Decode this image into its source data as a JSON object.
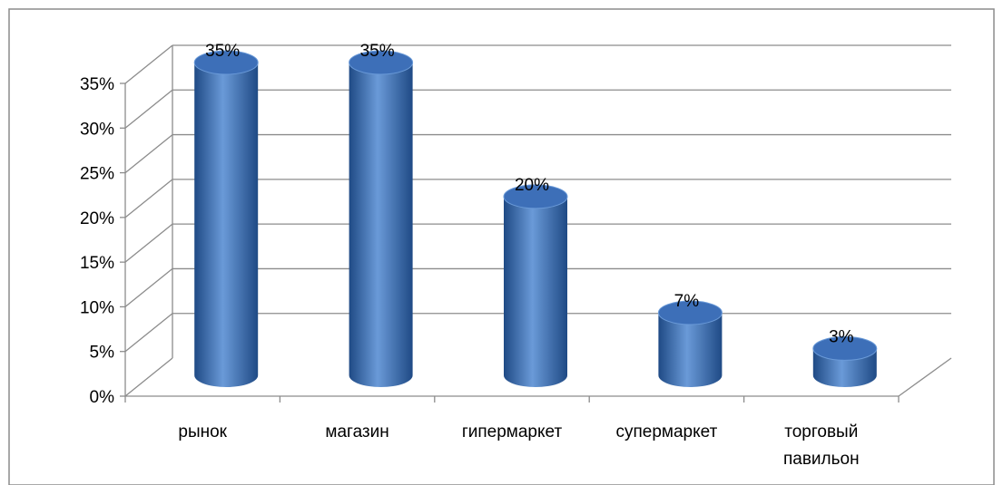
{
  "chart_data": {
    "type": "bar",
    "style": "3d-cylinder",
    "title": "",
    "xlabel": "",
    "ylabel": "",
    "categories": [
      [
        "рынок"
      ],
      [
        "магазин"
      ],
      [
        "гипермаркет"
      ],
      [
        "супермаркет"
      ],
      [
        "торговый",
        "павильон"
      ]
    ],
    "values": [
      35,
      35,
      20,
      7,
      3
    ],
    "data_labels": [
      "35%",
      "35%",
      "20%",
      "7%",
      "3%"
    ],
    "y_ticks": [
      "0%",
      "5%",
      "10%",
      "15%",
      "20%",
      "25%",
      "30%",
      "35%"
    ],
    "ylim": [
      0,
      35
    ],
    "grid": true,
    "legend": "none",
    "colors": {
      "bar_light": "#6a9ad8",
      "bar_mid": "#4a7cc4",
      "bar_dark": "#1f4a85",
      "bar_top": "#3d6fb8",
      "grid": "#8c8c8c",
      "border": "#8c8c8c"
    }
  }
}
